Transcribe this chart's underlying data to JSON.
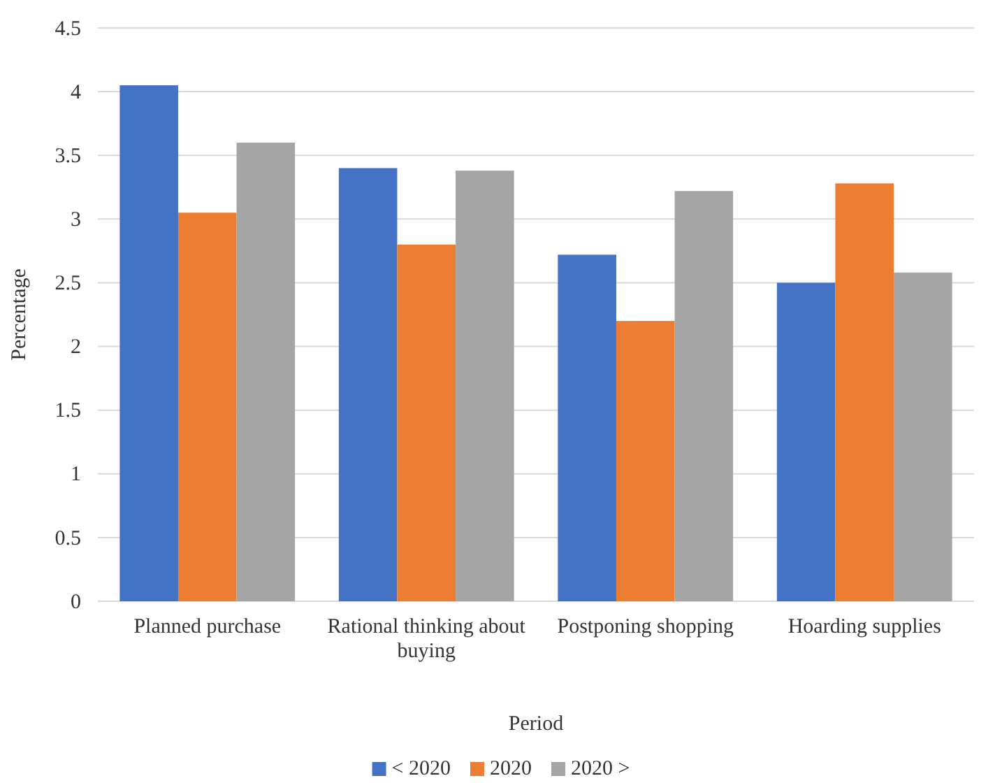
{
  "chart_data": {
    "type": "bar",
    "xlabel": "Period",
    "ylabel": "Percentage",
    "categories": [
      "Planned purchase",
      "Rational thinking about buying",
      "Postponing shopping",
      "Hoarding supplies"
    ],
    "series": [
      {
        "name": "<  2020",
        "color": "#4472c4",
        "values": [
          4.05,
          3.4,
          2.72,
          2.5
        ]
      },
      {
        "name": "2020",
        "color": "#ed7d31",
        "values": [
          3.05,
          2.8,
          2.2,
          3.28
        ]
      },
      {
        "name": "2020 >",
        "color": "#a5a5a5",
        "values": [
          3.6,
          3.38,
          3.22,
          2.58
        ]
      }
    ],
    "ylim": [
      0,
      4.5
    ],
    "yticks": [
      0,
      0.5,
      1,
      1.5,
      2,
      2.5,
      3,
      3.5,
      4,
      4.5
    ],
    "grid": "y",
    "legend": "bottom"
  }
}
